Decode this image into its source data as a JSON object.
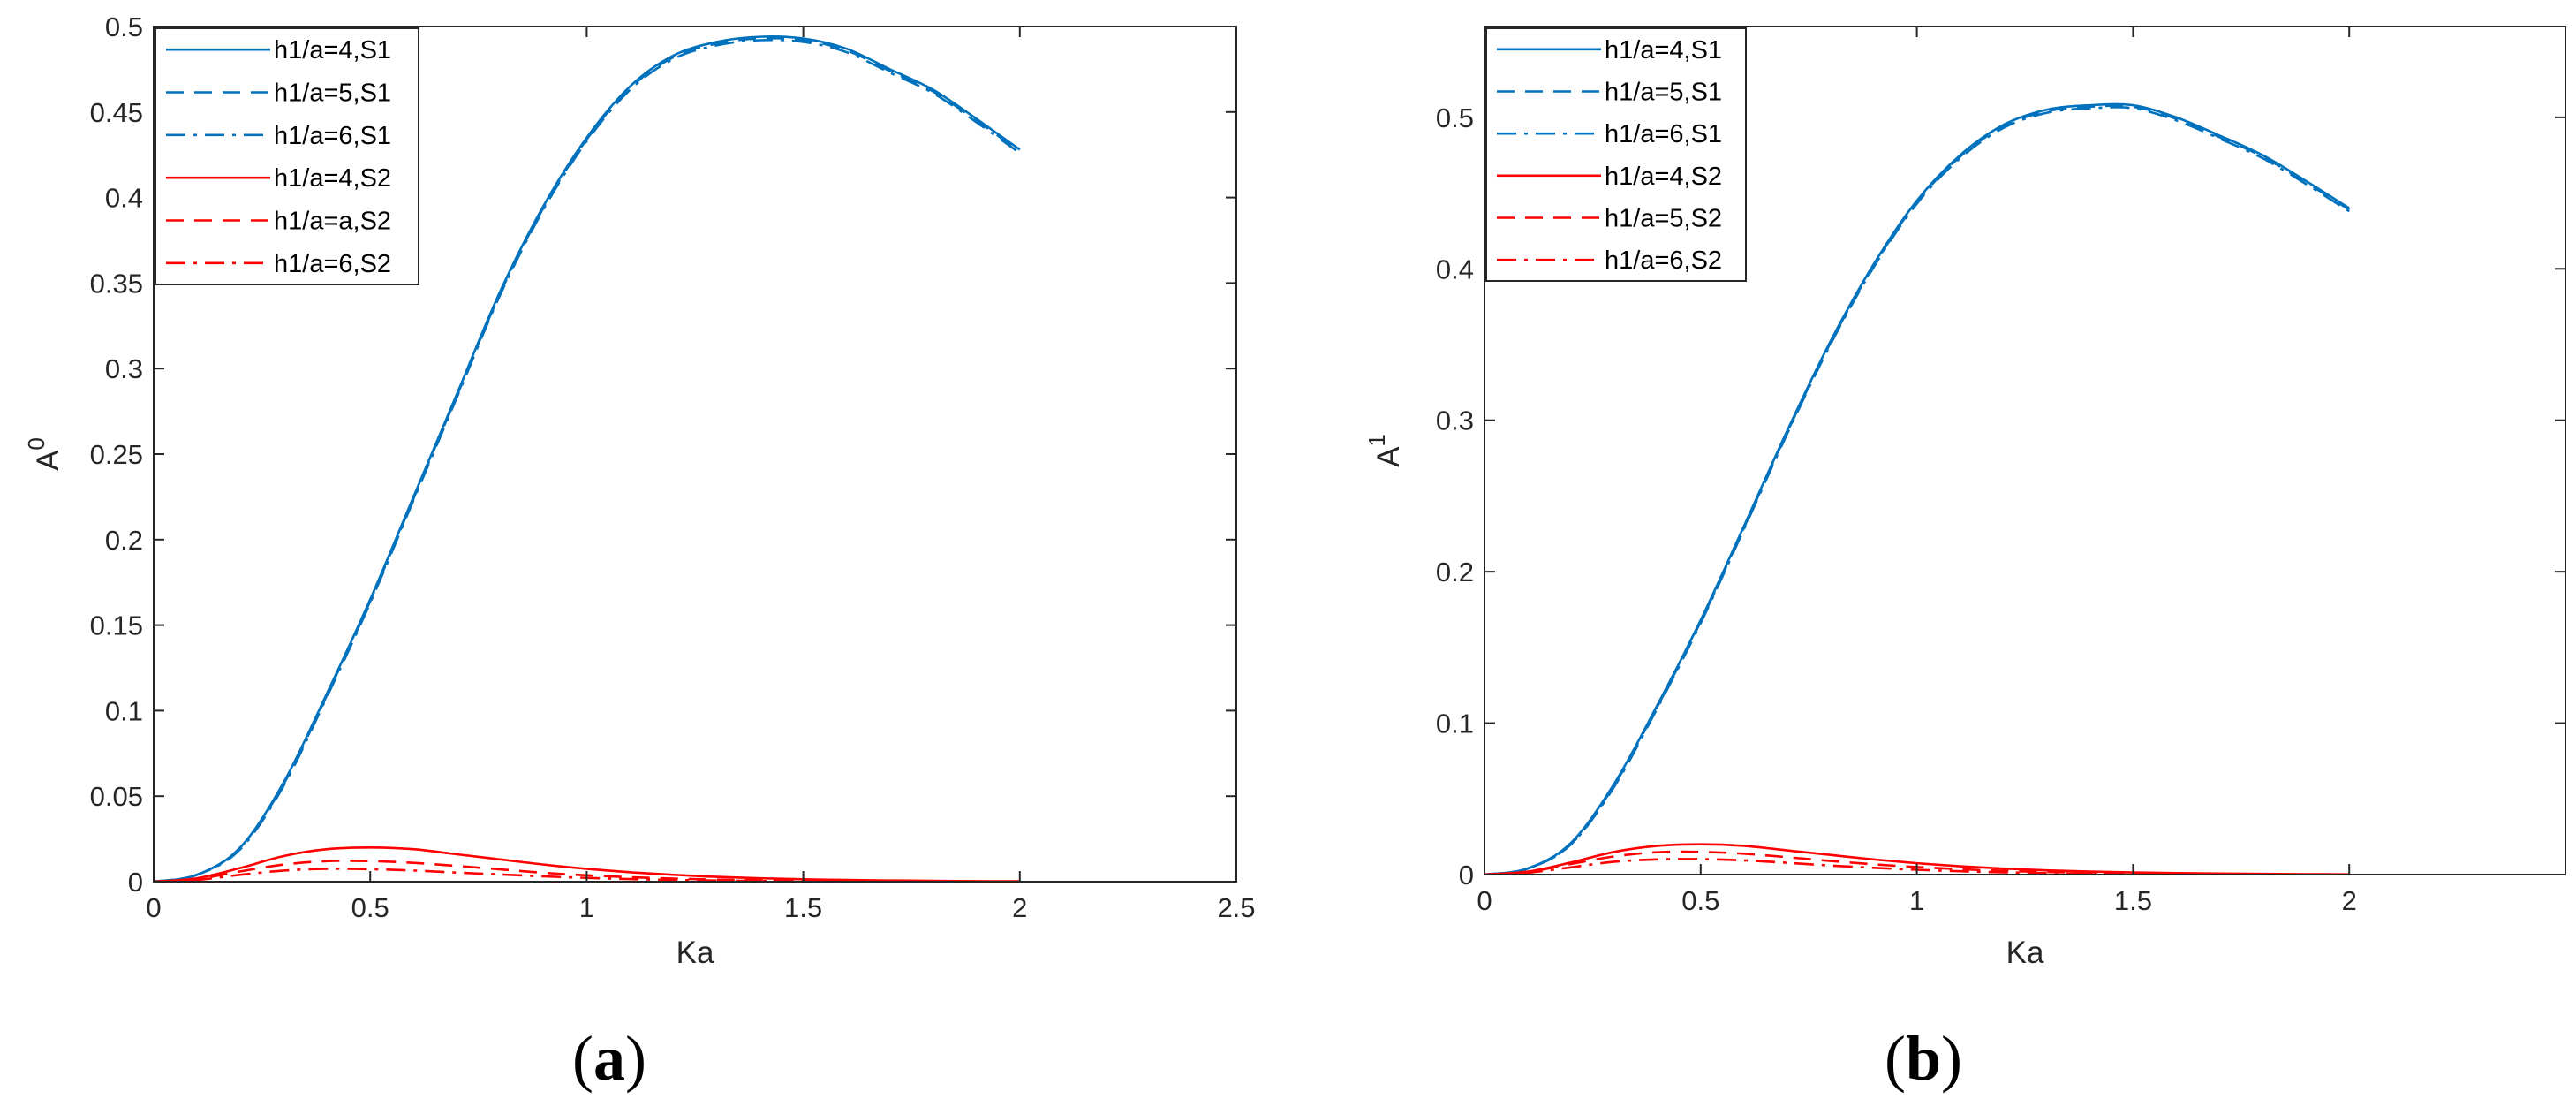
{
  "chart_data": [
    {
      "id": "a",
      "type": "line",
      "panel_label_open": "(",
      "panel_label": "a",
      "panel_label_close": ")",
      "xlabel": "Ka",
      "ylabel_base": "A",
      "ylabel_sup": "0",
      "xlim": [
        0,
        2.5
      ],
      "ylim": [
        0,
        0.5
      ],
      "xticks": [
        0,
        0.5,
        1,
        1.5,
        2,
        2.5
      ],
      "xtick_labels": [
        "0",
        "0.5",
        "1",
        "1.5",
        "2",
        "2.5"
      ],
      "yticks": [
        0,
        0.05,
        0.1,
        0.15,
        0.2,
        0.25,
        0.3,
        0.35,
        0.4,
        0.45,
        0.5
      ],
      "ytick_labels": [
        "0",
        "0.05",
        "0.1",
        "0.15",
        "0.2",
        "0.25",
        "0.3",
        "0.35",
        "0.4",
        "0.45",
        "0.5"
      ],
      "grid": false,
      "legend_position": "top-left",
      "x": [
        0,
        0.1,
        0.2,
        0.3,
        0.4,
        0.5,
        0.6,
        0.7,
        0.8,
        0.9,
        1.0,
        1.1,
        1.2,
        1.3,
        1.4,
        1.5,
        1.6,
        1.7,
        1.8,
        1.9,
        2.0
      ],
      "series": [
        {
          "name": "h1/a=4,S1",
          "color": "#0072BD",
          "dash": "solid",
          "values": [
            0,
            0.004,
            0.02,
            0.058,
            0.11,
            0.165,
            0.225,
            0.285,
            0.345,
            0.395,
            0.435,
            0.465,
            0.483,
            0.491,
            0.494,
            0.493,
            0.487,
            0.475,
            0.463,
            0.446,
            0.428
          ]
        },
        {
          "name": "h1/a=5,S1",
          "color": "#0072BD",
          "dash": "dashed",
          "values": [
            0,
            0.004,
            0.02,
            0.057,
            0.109,
            0.164,
            0.224,
            0.284,
            0.344,
            0.394,
            0.434,
            0.464,
            0.482,
            0.49,
            0.493,
            0.492,
            0.486,
            0.474,
            0.462,
            0.445,
            0.427
          ]
        },
        {
          "name": "h1/a=6,S1",
          "color": "#0072BD",
          "dash": "dashdot",
          "values": [
            0,
            0.004,
            0.019,
            0.056,
            0.108,
            0.163,
            0.223,
            0.283,
            0.343,
            0.393,
            0.433,
            0.463,
            0.481,
            0.489,
            0.492,
            0.491,
            0.485,
            0.473,
            0.461,
            0.444,
            0.426
          ]
        },
        {
          "name": "h1/a=4,S2",
          "color": "#FF0000",
          "dash": "solid",
          "values": [
            0,
            0.002,
            0.008,
            0.015,
            0.019,
            0.02,
            0.019,
            0.016,
            0.013,
            0.01,
            0.0075,
            0.0055,
            0.004,
            0.0028,
            0.002,
            0.0014,
            0.001,
            0.0007,
            0.0005,
            0.0003,
            0.0002
          ]
        },
        {
          "name": "h1/a=a,S2",
          "color": "#FF0000",
          "dash": "dashed",
          "values": [
            0,
            0.0015,
            0.006,
            0.01,
            0.012,
            0.012,
            0.011,
            0.0092,
            0.0072,
            0.0052,
            0.0037,
            0.0026,
            0.0018,
            0.0012,
            0.0008,
            0.0005,
            0.0003,
            0.0002,
            0.0001,
            0.0001,
            0
          ]
        },
        {
          "name": "h1/a=6,S2",
          "color": "#FF0000",
          "dash": "dashdot",
          "values": [
            0,
            0.001,
            0.004,
            0.0065,
            0.0075,
            0.0073,
            0.0065,
            0.0053,
            0.0042,
            0.0031,
            0.0022,
            0.0015,
            0.001,
            0.0007,
            0.0004,
            0.0003,
            0.0002,
            0.0001,
            0,
            0,
            0
          ]
        }
      ]
    },
    {
      "id": "b",
      "type": "line",
      "panel_label_open": "(",
      "panel_label": "b",
      "panel_label_close": ")",
      "xlabel": "Ka",
      "ylabel_base": "A",
      "ylabel_sup": "1",
      "xlim": [
        0,
        2.5
      ],
      "ylim": [
        0,
        0.56
      ],
      "xticks": [
        0,
        0.5,
        1,
        1.5,
        2
      ],
      "xtick_labels": [
        "0",
        "0.5",
        "1",
        "1.5",
        "2"
      ],
      "yticks": [
        0,
        0.1,
        0.2,
        0.3,
        0.4,
        0.5
      ],
      "ytick_labels": [
        "0",
        "0.1",
        "0.2",
        "0.3",
        "0.4",
        "0.5"
      ],
      "grid": false,
      "legend_position": "top-left",
      "x": [
        0,
        0.1,
        0.2,
        0.3,
        0.4,
        0.5,
        0.6,
        0.7,
        0.8,
        0.9,
        1.0,
        1.1,
        1.2,
        1.3,
        1.4,
        1.5,
        1.6,
        1.7,
        1.8,
        1.9,
        2.0
      ],
      "series": [
        {
          "name": "h1/a=4,S1",
          "color": "#0072BD",
          "dash": "solid",
          "values": [
            0,
            0.004,
            0.021,
            0.06,
            0.112,
            0.168,
            0.23,
            0.293,
            0.352,
            0.403,
            0.445,
            0.475,
            0.495,
            0.505,
            0.508,
            0.508,
            0.5,
            0.488,
            0.475,
            0.458,
            0.44
          ]
        },
        {
          "name": "h1/a=5,S1",
          "color": "#0072BD",
          "dash": "dashed",
          "values": [
            0,
            0.004,
            0.02,
            0.059,
            0.111,
            0.167,
            0.229,
            0.292,
            0.351,
            0.402,
            0.444,
            0.474,
            0.494,
            0.504,
            0.507,
            0.507,
            0.499,
            0.487,
            0.474,
            0.457,
            0.439
          ]
        },
        {
          "name": "h1/a=6,S1",
          "color": "#0072BD",
          "dash": "dashdot",
          "values": [
            0,
            0.004,
            0.02,
            0.058,
            0.11,
            0.166,
            0.228,
            0.291,
            0.35,
            0.401,
            0.443,
            0.473,
            0.493,
            0.503,
            0.506,
            0.506,
            0.498,
            0.486,
            0.473,
            0.456,
            0.438
          ]
        },
        {
          "name": "h1/a=4,S2",
          "color": "#FF0000",
          "dash": "solid",
          "values": [
            0,
            0.002,
            0.008,
            0.015,
            0.019,
            0.02,
            0.019,
            0.016,
            0.013,
            0.01,
            0.0075,
            0.0055,
            0.004,
            0.0028,
            0.002,
            0.0014,
            0.001,
            0.0007,
            0.0005,
            0.0003,
            0.0002
          ]
        },
        {
          "name": "h1/a=5,S2",
          "color": "#FF0000",
          "dash": "dashed",
          "values": [
            0,
            0.0018,
            0.007,
            0.012,
            0.0148,
            0.015,
            0.0138,
            0.0115,
            0.009,
            0.0068,
            0.005,
            0.0036,
            0.0025,
            0.0017,
            0.0012,
            0.0008,
            0.0005,
            0.0003,
            0.0002,
            0.0001,
            0.0001
          ]
        },
        {
          "name": "h1/a=6,S2",
          "color": "#FF0000",
          "dash": "dashdot",
          "values": [
            0,
            0.0012,
            0.0048,
            0.0085,
            0.01,
            0.0102,
            0.0094,
            0.0078,
            0.006,
            0.0045,
            0.0032,
            0.0022,
            0.0015,
            0.001,
            0.0007,
            0.0004,
            0.0003,
            0.0002,
            0.0001,
            0.0001,
            0
          ]
        }
      ]
    }
  ]
}
